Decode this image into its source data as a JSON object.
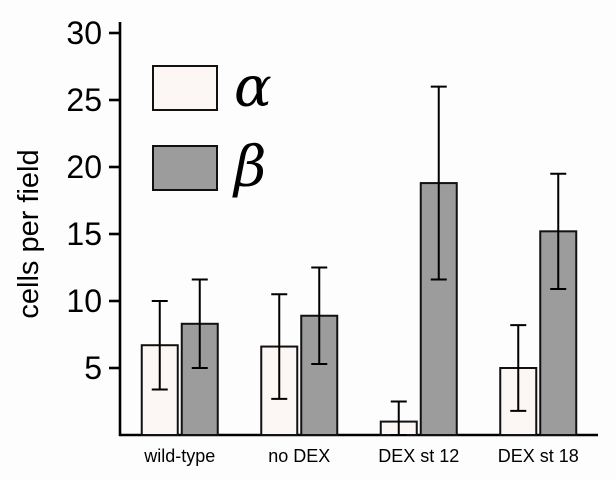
{
  "chart_data": {
    "type": "bar",
    "title": "",
    "ylabel": "cells per field",
    "xlabel": "",
    "ylim": [
      0,
      30
    ],
    "yticks": [
      5,
      10,
      15,
      20,
      25,
      30
    ],
    "grid": false,
    "legend_position": "top-left-inside",
    "bar_border_color": "#111111",
    "axis_color": "#000000",
    "categories": [
      "wild-type",
      "no DEX",
      "DEX st 12",
      "DEX st 18"
    ],
    "series": [
      {
        "name": "α",
        "color": "#fcf7f4",
        "values": [
          6.7,
          6.6,
          1.0,
          5.0
        ],
        "errors": [
          3.3,
          3.9,
          1.5,
          3.2
        ]
      },
      {
        "name": "β",
        "color": "#9c9c9c",
        "values": [
          8.3,
          8.9,
          18.8,
          15.2
        ],
        "errors": [
          3.3,
          3.6,
          7.2,
          4.3
        ]
      }
    ]
  }
}
